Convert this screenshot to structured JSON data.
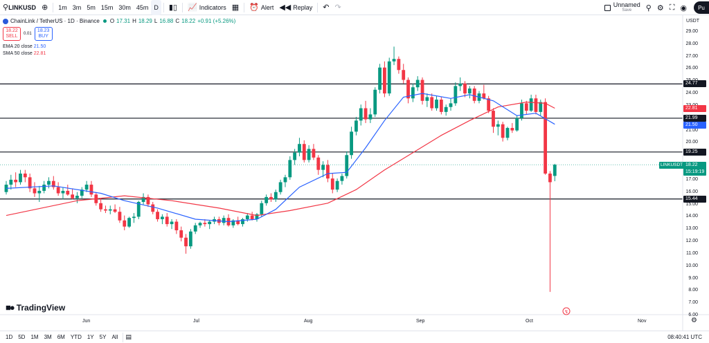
{
  "toolbar": {
    "symbol": "LINKUSD",
    "intervals": [
      "1m",
      "3m",
      "5m",
      "15m",
      "30m",
      "45m",
      "D"
    ],
    "indicators_label": "Indicators",
    "alert_label": "Alert",
    "replay_label": "Replay",
    "layout_name": "Unnamed",
    "layout_status": "Save",
    "publish_label": "Pu"
  },
  "legend": {
    "title": "ChainLink / TetherUS · 1D · Binance",
    "open": "17.31",
    "high": "18.29",
    "low": "16.88",
    "close": "18.22",
    "change": "+0.91 (+5.26%)",
    "sell_price": "18.22",
    "sell_label": "SELL",
    "buy_price": "18.23",
    "buy_label": "BUY",
    "spread": "0.01",
    "ema_label": "EMA 20 close",
    "ema_value": "21.50",
    "sma_label": "SMA 50 close",
    "sma_value": "22.81"
  },
  "price_axis": {
    "currency": "USDT",
    "ticks": [
      "29.00",
      "28.00",
      "27.00",
      "26.00",
      "25.00",
      "24.00",
      "23.00",
      "22.00",
      "21.00",
      "20.00",
      "19.00",
      "18.00",
      "17.00",
      "16.00",
      "15.00",
      "14.00",
      "13.00",
      "12.00",
      "11.00",
      "10.00",
      "9.00",
      "8.00",
      "7.00",
      "6.00"
    ],
    "levels": [
      "24.77",
      "21.99",
      "19.25",
      "15.44"
    ],
    "sma_tag": "22.81",
    "ema_tag": "21.50",
    "symbol_tag": "LINKUSDT",
    "last_price": "18.22",
    "countdown": "15:19:19"
  },
  "time_axis": {
    "months": [
      "Jun",
      "Jul",
      "Aug",
      "Sep",
      "Oct",
      "Nov"
    ]
  },
  "bottom": {
    "ranges": [
      "1D",
      "5D",
      "1M",
      "3M",
      "6M",
      "YTD",
      "1Y",
      "5Y",
      "All"
    ],
    "clock": "08:40:41 UTC"
  },
  "brand": "TradingView",
  "colors": {
    "up": "#089981",
    "down": "#f23645",
    "ema": "#2962ff",
    "sma": "#f23645"
  },
  "chart_data": {
    "type": "candlestick",
    "levels": [
      24.77,
      21.99,
      19.25,
      15.44
    ],
    "ylim": [
      6,
      29.8
    ],
    "candles": [
      [
        16.0,
        16.9,
        15.8,
        16.6
      ],
      [
        16.6,
        17.4,
        16.2,
        17.0
      ],
      [
        17.0,
        17.6,
        16.4,
        16.8
      ],
      [
        16.8,
        17.8,
        16.6,
        17.5
      ],
      [
        17.5,
        17.8,
        16.8,
        17.2
      ],
      [
        17.2,
        17.5,
        16.0,
        16.3
      ],
      [
        16.3,
        16.8,
        15.6,
        15.9
      ],
      [
        15.9,
        16.5,
        15.2,
        16.1
      ],
      [
        16.1,
        16.9,
        15.9,
        16.6
      ],
      [
        16.6,
        17.2,
        16.3,
        16.9
      ],
      [
        16.9,
        17.3,
        16.2,
        16.4
      ],
      [
        16.4,
        16.8,
        15.7,
        15.9
      ],
      [
        15.9,
        16.4,
        15.4,
        16.1
      ],
      [
        16.1,
        16.6,
        15.7,
        15.8
      ],
      [
        15.8,
        16.3,
        15.4,
        15.5
      ],
      [
        15.5,
        16.0,
        15.1,
        15.7
      ],
      [
        15.7,
        16.4,
        15.5,
        16.2
      ],
      [
        16.2,
        16.9,
        16.0,
        16.6
      ],
      [
        16.6,
        16.9,
        15.6,
        15.8
      ],
      [
        15.8,
        16.0,
        14.9,
        15.1
      ],
      [
        15.1,
        15.5,
        14.4,
        14.6
      ],
      [
        14.6,
        14.9,
        14.3,
        14.5
      ],
      [
        14.5,
        14.9,
        14.2,
        14.6
      ],
      [
        14.6,
        15.0,
        14.3,
        14.4
      ],
      [
        14.4,
        14.8,
        13.5,
        13.7
      ],
      [
        13.7,
        14.1,
        12.9,
        13.2
      ],
      [
        13.2,
        14.0,
        13.1,
        13.9
      ],
      [
        13.9,
        14.3,
        13.5,
        14.0
      ],
      [
        14.0,
        15.3,
        13.8,
        15.2
      ],
      [
        15.2,
        15.9,
        15.0,
        15.6
      ],
      [
        15.6,
        15.8,
        14.8,
        15.0
      ],
      [
        15.0,
        15.2,
        14.2,
        14.4
      ],
      [
        14.4,
        14.6,
        13.6,
        13.8
      ],
      [
        13.8,
        14.2,
        13.4,
        14.0
      ],
      [
        14.0,
        14.3,
        13.2,
        13.4
      ],
      [
        13.4,
        13.8,
        13.0,
        13.6
      ],
      [
        13.6,
        13.8,
        12.6,
        12.9
      ],
      [
        12.9,
        13.2,
        12.0,
        12.3
      ],
      [
        12.3,
        12.6,
        11.0,
        11.6
      ],
      [
        11.6,
        13.0,
        11.4,
        12.8
      ],
      [
        12.8,
        13.5,
        12.6,
        13.3
      ],
      [
        13.3,
        13.6,
        13.1,
        13.5
      ],
      [
        13.5,
        13.8,
        13.2,
        13.4
      ],
      [
        13.4,
        13.7,
        13.0,
        13.6
      ],
      [
        13.6,
        14.0,
        13.4,
        13.8
      ],
      [
        13.8,
        14.0,
        13.3,
        13.5
      ],
      [
        13.5,
        14.1,
        13.3,
        13.9
      ],
      [
        13.9,
        14.2,
        13.2,
        13.3
      ],
      [
        13.3,
        13.8,
        13.1,
        13.7
      ],
      [
        13.7,
        14.0,
        13.3,
        13.4
      ],
      [
        13.4,
        13.9,
        13.2,
        13.8
      ],
      [
        13.8,
        14.3,
        13.6,
        14.1
      ],
      [
        14.1,
        14.4,
        13.7,
        13.8
      ],
      [
        13.8,
        14.3,
        13.6,
        14.2
      ],
      [
        14.2,
        15.3,
        14.0,
        15.1
      ],
      [
        15.1,
        15.8,
        14.9,
        15.6
      ],
      [
        15.6,
        15.9,
        15.2,
        15.4
      ],
      [
        15.4,
        16.2,
        15.2,
        16.0
      ],
      [
        16.0,
        17.0,
        15.8,
        16.8
      ],
      [
        16.8,
        17.4,
        16.4,
        17.2
      ],
      [
        17.2,
        18.9,
        17.0,
        18.6
      ],
      [
        18.6,
        19.5,
        18.2,
        19.2
      ],
      [
        19.2,
        20.4,
        18.9,
        19.9
      ],
      [
        19.9,
        20.2,
        18.4,
        18.6
      ],
      [
        18.6,
        19.8,
        18.4,
        19.5
      ],
      [
        19.5,
        19.9,
        18.6,
        18.8
      ],
      [
        18.8,
        19.0,
        17.4,
        17.8
      ],
      [
        17.8,
        18.5,
        17.2,
        18.2
      ],
      [
        18.2,
        18.6,
        16.8,
        17.1
      ],
      [
        17.1,
        17.5,
        15.9,
        16.2
      ],
      [
        16.2,
        17.1,
        16.0,
        16.9
      ],
      [
        16.9,
        17.5,
        16.6,
        17.3
      ],
      [
        17.3,
        19.3,
        17.1,
        19.0
      ],
      [
        19.0,
        21.3,
        18.7,
        20.9
      ],
      [
        20.9,
        22.1,
        20.6,
        21.8
      ],
      [
        21.8,
        23.1,
        21.4,
        22.8
      ],
      [
        22.8,
        23.4,
        21.6,
        21.9
      ],
      [
        21.9,
        22.8,
        21.6,
        22.3
      ],
      [
        22.3,
        24.5,
        22.1,
        24.3
      ],
      [
        24.3,
        26.4,
        24.0,
        26.1
      ],
      [
        26.1,
        26.6,
        23.7,
        24.0
      ],
      [
        24.0,
        26.9,
        23.8,
        26.6
      ],
      [
        26.6,
        27.8,
        26.3,
        26.8
      ],
      [
        26.8,
        27.0,
        25.6,
        25.9
      ],
      [
        25.9,
        26.4,
        24.8,
        25.1
      ],
      [
        25.1,
        25.3,
        23.2,
        23.6
      ],
      [
        23.6,
        24.8,
        23.3,
        24.5
      ],
      [
        24.5,
        25.4,
        24.2,
        25.1
      ],
      [
        25.1,
        25.3,
        23.1,
        23.4
      ],
      [
        23.4,
        24.0,
        22.9,
        23.7
      ],
      [
        23.7,
        24.0,
        22.6,
        22.8
      ],
      [
        22.8,
        23.8,
        22.6,
        23.5
      ],
      [
        23.5,
        23.7,
        22.3,
        22.5
      ],
      [
        22.5,
        23.1,
        22.2,
        22.9
      ],
      [
        22.9,
        23.6,
        22.6,
        23.2
      ],
      [
        23.2,
        24.9,
        23.0,
        24.6
      ],
      [
        24.6,
        25.3,
        24.2,
        24.8
      ],
      [
        24.8,
        25.0,
        23.7,
        24.0
      ],
      [
        24.0,
        24.6,
        23.6,
        24.4
      ],
      [
        24.4,
        24.6,
        23.2,
        23.4
      ],
      [
        23.4,
        24.2,
        23.2,
        24.0
      ],
      [
        24.0,
        24.7,
        23.5,
        23.6
      ],
      [
        23.6,
        23.8,
        22.4,
        22.6
      ],
      [
        22.6,
        22.8,
        20.8,
        21.3
      ],
      [
        21.3,
        21.8,
        20.6,
        21.5
      ],
      [
        21.5,
        21.7,
        20.1,
        20.4
      ],
      [
        20.4,
        21.3,
        20.2,
        21.2
      ],
      [
        21.2,
        21.6,
        20.8,
        21.0
      ],
      [
        21.0,
        22.2,
        20.9,
        22.0
      ],
      [
        22.0,
        23.5,
        21.8,
        23.2
      ],
      [
        23.2,
        23.4,
        22.3,
        22.6
      ],
      [
        22.6,
        23.9,
        22.5,
        23.6
      ],
      [
        23.6,
        23.9,
        22.3,
        22.5
      ],
      [
        22.5,
        23.5,
        22.2,
        23.3
      ],
      [
        23.3,
        23.6,
        17.4,
        17.5
      ],
      [
        17.5,
        17.7,
        7.9,
        16.8
      ],
      [
        17.31,
        18.29,
        16.88,
        18.22
      ]
    ],
    "ema20": [
      [
        0,
        16.3
      ],
      [
        10,
        16.5
      ],
      [
        20,
        15.9
      ],
      [
        25,
        15.3
      ],
      [
        32,
        14.7
      ],
      [
        40,
        13.8
      ],
      [
        47,
        13.6
      ],
      [
        53,
        13.8
      ],
      [
        57,
        14.6
      ],
      [
        62,
        16.4
      ],
      [
        68,
        17.5
      ],
      [
        72,
        17.6
      ],
      [
        76,
        19.6
      ],
      [
        80,
        21.8
      ],
      [
        84,
        23.7
      ],
      [
        88,
        24.0
      ],
      [
        94,
        23.6
      ],
      [
        98,
        23.9
      ],
      [
        103,
        23.4
      ],
      [
        108,
        22.2
      ],
      [
        112,
        22.4
      ],
      [
        116,
        21.5
      ]
    ],
    "sma50": [
      [
        0,
        14.1
      ],
      [
        15,
        15.3
      ],
      [
        25,
        15.7
      ],
      [
        35,
        15.3
      ],
      [
        45,
        14.7
      ],
      [
        53,
        14.1
      ],
      [
        60,
        14.5
      ],
      [
        68,
        15.1
      ],
      [
        74,
        16.2
      ],
      [
        80,
        17.8
      ],
      [
        86,
        19.2
      ],
      [
        92,
        20.6
      ],
      [
        98,
        21.8
      ],
      [
        104,
        22.9
      ],
      [
        110,
        23.3
      ],
      [
        114,
        23.2
      ],
      [
        116,
        22.8
      ]
    ]
  }
}
